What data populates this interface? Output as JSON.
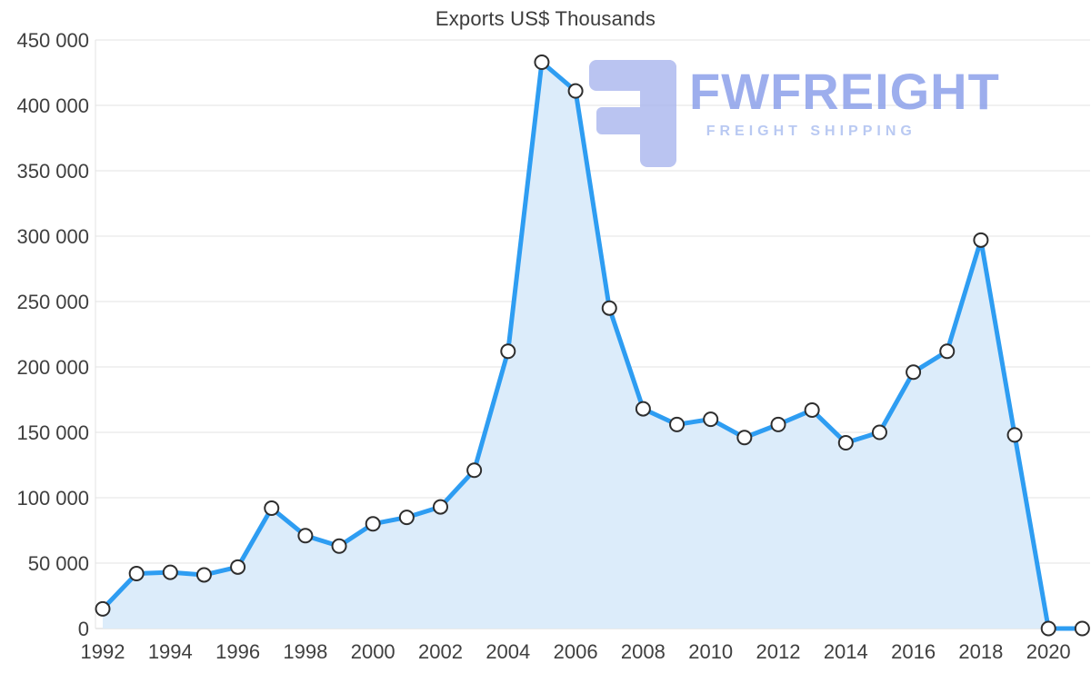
{
  "chart_data": {
    "type": "area",
    "title": "Exports US$ Thousands",
    "x": [
      1992,
      1993,
      1994,
      1995,
      1996,
      1997,
      1998,
      1999,
      2000,
      2001,
      2002,
      2003,
      2004,
      2005,
      2006,
      2007,
      2008,
      2009,
      2010,
      2011,
      2012,
      2013,
      2014,
      2015,
      2016,
      2017,
      2018,
      2019,
      2020,
      2021
    ],
    "values": [
      15000,
      42000,
      43000,
      41000,
      47000,
      92000,
      71000,
      63000,
      80000,
      85000,
      93000,
      121000,
      212000,
      433000,
      411000,
      245000,
      168000,
      156000,
      160000,
      146000,
      156000,
      167000,
      142000,
      150000,
      196000,
      212000,
      297000,
      148000,
      0,
      0
    ],
    "ylim": [
      0,
      450000
    ],
    "ytick_labels": [
      "0",
      "50 000",
      "100 000",
      "150 000",
      "200 000",
      "250 000",
      "300 000",
      "350 000",
      "400 000",
      "450 000"
    ],
    "xtick_years": [
      1992,
      1994,
      1996,
      1998,
      2000,
      2002,
      2004,
      2006,
      2008,
      2010,
      2012,
      2014,
      2016,
      2018,
      2020
    ],
    "grid": "horizontal",
    "legend_position": "none",
    "marker": "circle"
  },
  "watermark": {
    "brand": "FWFREIGHT",
    "tagline": "FREIGHT SHIPPING"
  },
  "colors": {
    "line": "#2e9df2",
    "fill": "#dcecfa",
    "grid": "#e3e3e3",
    "axis_line": "#d6d6d6",
    "axis_text": "#3f3f3f",
    "marker_fill": "#ffffff",
    "marker_stroke": "#2e2e2e",
    "logo_icon": "#a9b6ee",
    "logo_text": "#8ca0ea",
    "logo_tagline": "#a8bcf0"
  }
}
